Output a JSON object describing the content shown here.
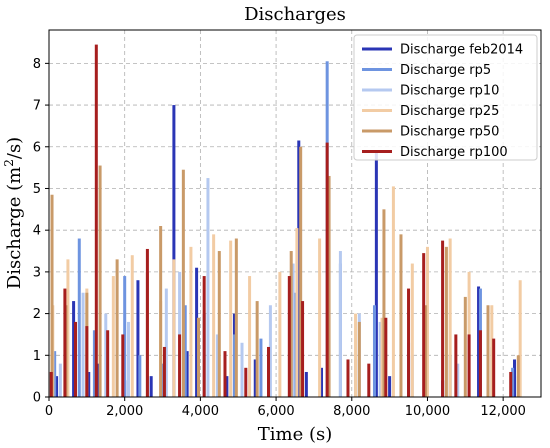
{
  "chart_data": {
    "type": "bar",
    "title": "Discharges",
    "xlabel": "Time (s)",
    "ylabel_base": "Discharge (m",
    "ylabel_sup": "2",
    "ylabel_end": "/s)",
    "xlim": [
      0,
      13000
    ],
    "ylim": [
      0,
      8.8
    ],
    "xticks": [
      0,
      2000,
      4000,
      6000,
      8000,
      10000,
      12000
    ],
    "xtick_labels": [
      "0",
      "2,000",
      "4,000",
      "6,000",
      "8,000",
      "10,000",
      "12,000"
    ],
    "yticks": [
      0,
      1,
      2,
      3,
      4,
      5,
      6,
      7,
      8
    ],
    "ytick_labels": [
      "0",
      "1",
      "2",
      "3",
      "4",
      "5",
      "6",
      "7",
      "8"
    ],
    "grid": true,
    "legend_position": "top-right",
    "series": [
      {
        "name": "Discharge feb2014",
        "color": "#2a35b5",
        "points": [
          [
            200,
            0.5
          ],
          [
            650,
            2.3
          ],
          [
            1050,
            0.6
          ],
          [
            1300,
            0.8
          ],
          [
            2000,
            0.4
          ],
          [
            2350,
            2.8
          ],
          [
            2700,
            0.5
          ],
          [
            3300,
            7.0
          ],
          [
            3650,
            1.1
          ],
          [
            3900,
            3.1
          ],
          [
            4700,
            0.5
          ],
          [
            4900,
            2.0
          ],
          [
            5450,
            0.9
          ],
          [
            6600,
            6.15
          ],
          [
            6800,
            0.6
          ],
          [
            7200,
            0.7
          ],
          [
            8650,
            5.9
          ],
          [
            9000,
            0.5
          ],
          [
            10400,
            0.4
          ],
          [
            11350,
            2.65
          ],
          [
            11600,
            0.3
          ],
          [
            12300,
            0.9
          ]
        ]
      },
      {
        "name": "Discharge rp5",
        "color": "#6e94e0",
        "points": [
          [
            150,
            1.1
          ],
          [
            800,
            3.8
          ],
          [
            1200,
            1.6
          ],
          [
            2000,
            2.9
          ],
          [
            2400,
            1.0
          ],
          [
            3000,
            0.8
          ],
          [
            3600,
            2.2
          ],
          [
            4100,
            2.0
          ],
          [
            4900,
            1.5
          ],
          [
            5600,
            1.4
          ],
          [
            6500,
            2.5
          ],
          [
            7350,
            8.05
          ],
          [
            7700,
            3.2
          ],
          [
            8100,
            0.9
          ],
          [
            8600,
            2.2
          ],
          [
            9500,
            1.3
          ],
          [
            10600,
            1.0
          ],
          [
            11400,
            2.6
          ],
          [
            12250,
            0.7
          ]
        ]
      },
      {
        "name": "Discharge rp10",
        "color": "#b5c9f0",
        "points": [
          [
            300,
            0.8
          ],
          [
            900,
            2.5
          ],
          [
            1500,
            2.0
          ],
          [
            2100,
            1.8
          ],
          [
            3100,
            2.6
          ],
          [
            3450,
            3.0
          ],
          [
            4200,
            5.25
          ],
          [
            4450,
            1.5
          ],
          [
            5100,
            1.3
          ],
          [
            5850,
            2.2
          ],
          [
            6450,
            3.2
          ],
          [
            7700,
            3.5
          ],
          [
            8200,
            2.0
          ],
          [
            8750,
            1.8
          ],
          [
            9600,
            1.0
          ],
          [
            10800,
            0.8
          ],
          [
            11700,
            1.2
          ],
          [
            12400,
            0.5
          ]
        ]
      },
      {
        "name": "Discharge rp25",
        "color": "#f2cca4",
        "points": [
          [
            100,
            2.2
          ],
          [
            500,
            3.3
          ],
          [
            1000,
            2.6
          ],
          [
            1700,
            2.9
          ],
          [
            2200,
            3.4
          ],
          [
            2950,
            2.3
          ],
          [
            3300,
            3.3
          ],
          [
            3750,
            3.6
          ],
          [
            4350,
            3.9
          ],
          [
            4800,
            3.75
          ],
          [
            5300,
            2.9
          ],
          [
            6100,
            3.0
          ],
          [
            6550,
            4.05
          ],
          [
            7150,
            3.8
          ],
          [
            8100,
            2.0
          ],
          [
            8800,
            1.9
          ],
          [
            9100,
            5.05
          ],
          [
            9600,
            3.2
          ],
          [
            10000,
            3.6
          ],
          [
            10600,
            3.8
          ],
          [
            11100,
            3.0
          ],
          [
            11700,
            2.2
          ],
          [
            12450,
            2.8
          ]
        ]
      },
      {
        "name": "Discharge rp50",
        "color": "#c99a68",
        "points": [
          [
            80,
            4.85
          ],
          [
            450,
            2.2
          ],
          [
            1000,
            2.5
          ],
          [
            1350,
            5.55
          ],
          [
            1800,
            3.3
          ],
          [
            2600,
            3.0
          ],
          [
            2950,
            4.1
          ],
          [
            3550,
            5.45
          ],
          [
            3950,
            1.9
          ],
          [
            4500,
            3.5
          ],
          [
            4950,
            3.8
          ],
          [
            5500,
            2.3
          ],
          [
            6400,
            3.5
          ],
          [
            6650,
            6.0
          ],
          [
            7400,
            5.3
          ],
          [
            8200,
            1.8
          ],
          [
            8850,
            4.5
          ],
          [
            9300,
            3.9
          ],
          [
            9950,
            2.2
          ],
          [
            10500,
            3.6
          ],
          [
            11000,
            2.4
          ],
          [
            11600,
            2.2
          ],
          [
            12400,
            1.0
          ]
        ]
      },
      {
        "name": "Discharge rp100",
        "color": "#a61e1e",
        "points": [
          [
            60,
            0.6
          ],
          [
            420,
            2.6
          ],
          [
            700,
            1.8
          ],
          [
            1000,
            1.7
          ],
          [
            1250,
            8.45
          ],
          [
            1550,
            1.6
          ],
          [
            1950,
            1.5
          ],
          [
            2600,
            3.55
          ],
          [
            3050,
            1.2
          ],
          [
            3450,
            1.5
          ],
          [
            4100,
            2.9
          ],
          [
            4650,
            1.1
          ],
          [
            5200,
            0.7
          ],
          [
            5800,
            1.2
          ],
          [
            6350,
            2.9
          ],
          [
            6700,
            2.3
          ],
          [
            7350,
            6.1
          ],
          [
            7900,
            0.9
          ],
          [
            8450,
            0.8
          ],
          [
            8900,
            1.9
          ],
          [
            9500,
            2.6
          ],
          [
            9900,
            3.45
          ],
          [
            10400,
            3.75
          ],
          [
            10750,
            1.5
          ],
          [
            11100,
            1.5
          ],
          [
            11400,
            1.6
          ],
          [
            11750,
            1.4
          ],
          [
            12200,
            0.6
          ]
        ]
      }
    ]
  }
}
